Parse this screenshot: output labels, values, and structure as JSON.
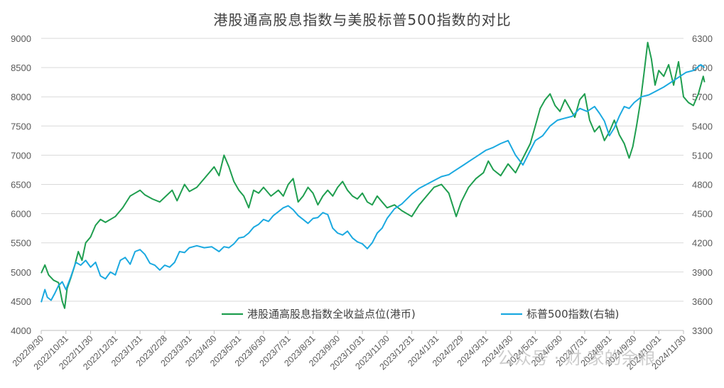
{
  "chart_data": {
    "type": "line",
    "title": "港股通高股息指数与美股标普500指数的对比",
    "xlabel": "",
    "ylabel_left": "",
    "ylabel_right": "",
    "ylim_left": [
      4000,
      9000
    ],
    "ylim_right": [
      3300,
      6300
    ],
    "left_ticks": [
      "4000",
      "4500",
      "5000",
      "5500",
      "6000",
      "6500",
      "7000",
      "7500",
      "8000",
      "8500",
      "9000"
    ],
    "right_ticks": [
      "3300",
      "3600",
      "3900",
      "4200",
      "4500",
      "4800",
      "5100",
      "5400",
      "5700",
      "6000",
      "6300"
    ],
    "x_ticks": [
      "2022/9/30",
      "2022/10/31",
      "2022/11/30",
      "2022/12/31",
      "2023/1/31",
      "2023/2/28",
      "2023/3/31",
      "2023/4/30",
      "2023/5/31",
      "2023/6/30",
      "2023/7/31",
      "2023/8/31",
      "2023/9/30",
      "2023/10/31",
      "2023/11/30",
      "2023/12/31",
      "2024/1/31",
      "2024/2/29",
      "2024/3/31",
      "2024/4/30",
      "2024/5/31",
      "2024/6/30",
      "2024/7/31",
      "2024/8/31",
      "2024/9/30",
      "2024/10/31",
      "2024/11/30"
    ],
    "grid": "horizontal",
    "legend_position": "bottom-center",
    "colors": {
      "hk": "#1f9e4f",
      "sp": "#1ba9e0"
    },
    "series": [
      {
        "name": "港股通高股息指数全收益点位(港币)",
        "axis": "left",
        "points": [
          [
            0,
            4980
          ],
          [
            0.15,
            5120
          ],
          [
            0.3,
            4950
          ],
          [
            0.5,
            4860
          ],
          [
            0.7,
            4820
          ],
          [
            0.85,
            4500
          ],
          [
            0.95,
            4380
          ],
          [
            1.05,
            4720
          ],
          [
            1.2,
            4900
          ],
          [
            1.35,
            5100
          ],
          [
            1.5,
            5350
          ],
          [
            1.65,
            5200
          ],
          [
            1.8,
            5500
          ],
          [
            2.0,
            5600
          ],
          [
            2.2,
            5800
          ],
          [
            2.4,
            5900
          ],
          [
            2.6,
            5850
          ],
          [
            3.0,
            5950
          ],
          [
            3.3,
            6100
          ],
          [
            3.6,
            6300
          ],
          [
            3.8,
            6350
          ],
          [
            4.0,
            6400
          ],
          [
            4.2,
            6320
          ],
          [
            4.5,
            6250
          ],
          [
            4.8,
            6200
          ],
          [
            5.0,
            6280
          ],
          [
            5.3,
            6400
          ],
          [
            5.5,
            6220
          ],
          [
            5.8,
            6500
          ],
          [
            6.0,
            6380
          ],
          [
            6.3,
            6450
          ],
          [
            6.5,
            6550
          ],
          [
            6.8,
            6700
          ],
          [
            7.0,
            6800
          ],
          [
            7.2,
            6650
          ],
          [
            7.4,
            7000
          ],
          [
            7.6,
            6800
          ],
          [
            7.8,
            6550
          ],
          [
            8.0,
            6400
          ],
          [
            8.2,
            6300
          ],
          [
            8.4,
            6100
          ],
          [
            8.6,
            6400
          ],
          [
            8.8,
            6350
          ],
          [
            9.0,
            6450
          ],
          [
            9.3,
            6300
          ],
          [
            9.6,
            6400
          ],
          [
            9.8,
            6300
          ],
          [
            10.0,
            6500
          ],
          [
            10.2,
            6600
          ],
          [
            10.4,
            6200
          ],
          [
            10.6,
            6300
          ],
          [
            10.8,
            6450
          ],
          [
            11.0,
            6350
          ],
          [
            11.2,
            6150
          ],
          [
            11.4,
            6300
          ],
          [
            11.6,
            6400
          ],
          [
            11.8,
            6300
          ],
          [
            12.0,
            6450
          ],
          [
            12.2,
            6550
          ],
          [
            12.4,
            6400
          ],
          [
            12.6,
            6300
          ],
          [
            12.8,
            6250
          ],
          [
            13.0,
            6350
          ],
          [
            13.2,
            6200
          ],
          [
            13.4,
            6150
          ],
          [
            13.6,
            6300
          ],
          [
            13.8,
            6200
          ],
          [
            14.0,
            6100
          ],
          [
            14.3,
            6150
          ],
          [
            14.6,
            6050
          ],
          [
            15.0,
            5950
          ],
          [
            15.3,
            6150
          ],
          [
            15.6,
            6300
          ],
          [
            15.9,
            6450
          ],
          [
            16.2,
            6500
          ],
          [
            16.5,
            6350
          ],
          [
            16.8,
            5950
          ],
          [
            17.0,
            6200
          ],
          [
            17.3,
            6450
          ],
          [
            17.6,
            6600
          ],
          [
            17.9,
            6700
          ],
          [
            18.1,
            6900
          ],
          [
            18.3,
            6750
          ],
          [
            18.6,
            6650
          ],
          [
            18.9,
            6850
          ],
          [
            19.2,
            6700
          ],
          [
            19.5,
            6950
          ],
          [
            19.8,
            7200
          ],
          [
            20.0,
            7500
          ],
          [
            20.2,
            7800
          ],
          [
            20.4,
            7950
          ],
          [
            20.6,
            8050
          ],
          [
            20.8,
            7850
          ],
          [
            21.0,
            7750
          ],
          [
            21.2,
            7950
          ],
          [
            21.4,
            7800
          ],
          [
            21.6,
            7650
          ],
          [
            21.8,
            7950
          ],
          [
            22.0,
            8050
          ],
          [
            22.2,
            7600
          ],
          [
            22.4,
            7400
          ],
          [
            22.6,
            7500
          ],
          [
            22.8,
            7250
          ],
          [
            23.0,
            7400
          ],
          [
            23.2,
            7600
          ],
          [
            23.4,
            7350
          ],
          [
            23.6,
            7200
          ],
          [
            23.8,
            6950
          ],
          [
            23.95,
            7150
          ],
          [
            24.1,
            7500
          ],
          [
            24.25,
            7900
          ],
          [
            24.4,
            8400
          ],
          [
            24.55,
            8930
          ],
          [
            24.7,
            8650
          ],
          [
            24.85,
            8200
          ],
          [
            25.0,
            8450
          ],
          [
            25.2,
            8350
          ],
          [
            25.4,
            8550
          ],
          [
            25.6,
            8200
          ],
          [
            25.8,
            8600
          ],
          [
            26.0,
            8000
          ],
          [
            26.2,
            7900
          ],
          [
            26.4,
            7850
          ],
          [
            26.6,
            8050
          ],
          [
            26.8,
            8350
          ],
          [
            26.85,
            8250
          ]
        ]
      },
      {
        "name": "标普500指数(右轴)",
        "axis": "right",
        "points": [
          [
            0,
            3590
          ],
          [
            0.15,
            3720
          ],
          [
            0.25,
            3640
          ],
          [
            0.4,
            3610
          ],
          [
            0.55,
            3680
          ],
          [
            0.7,
            3760
          ],
          [
            0.85,
            3800
          ],
          [
            1.0,
            3720
          ],
          [
            1.2,
            3850
          ],
          [
            1.4,
            4000
          ],
          [
            1.6,
            3970
          ],
          [
            1.8,
            4020
          ],
          [
            2.0,
            3950
          ],
          [
            2.2,
            4000
          ],
          [
            2.4,
            3860
          ],
          [
            2.6,
            3830
          ],
          [
            2.8,
            3900
          ],
          [
            3.0,
            3870
          ],
          [
            3.2,
            4020
          ],
          [
            3.4,
            4050
          ],
          [
            3.6,
            3980
          ],
          [
            3.8,
            4110
          ],
          [
            4.0,
            4130
          ],
          [
            4.2,
            4080
          ],
          [
            4.4,
            3990
          ],
          [
            4.6,
            3970
          ],
          [
            4.8,
            3920
          ],
          [
            5.0,
            3970
          ],
          [
            5.2,
            3950
          ],
          [
            5.4,
            4000
          ],
          [
            5.6,
            4110
          ],
          [
            5.8,
            4100
          ],
          [
            6.0,
            4150
          ],
          [
            6.3,
            4170
          ],
          [
            6.6,
            4150
          ],
          [
            6.9,
            4160
          ],
          [
            7.2,
            4110
          ],
          [
            7.4,
            4160
          ],
          [
            7.6,
            4150
          ],
          [
            7.8,
            4190
          ],
          [
            8.0,
            4250
          ],
          [
            8.2,
            4260
          ],
          [
            8.4,
            4300
          ],
          [
            8.6,
            4360
          ],
          [
            8.8,
            4390
          ],
          [
            9.0,
            4440
          ],
          [
            9.2,
            4420
          ],
          [
            9.4,
            4480
          ],
          [
            9.6,
            4520
          ],
          [
            9.8,
            4560
          ],
          [
            10.0,
            4580
          ],
          [
            10.2,
            4540
          ],
          [
            10.4,
            4480
          ],
          [
            10.6,
            4440
          ],
          [
            10.8,
            4400
          ],
          [
            11.0,
            4450
          ],
          [
            11.2,
            4460
          ],
          [
            11.4,
            4510
          ],
          [
            11.6,
            4490
          ],
          [
            11.8,
            4350
          ],
          [
            12.0,
            4300
          ],
          [
            12.2,
            4280
          ],
          [
            12.4,
            4320
          ],
          [
            12.6,
            4250
          ],
          [
            12.8,
            4210
          ],
          [
            13.0,
            4190
          ],
          [
            13.2,
            4140
          ],
          [
            13.4,
            4200
          ],
          [
            13.6,
            4300
          ],
          [
            13.8,
            4350
          ],
          [
            14.0,
            4450
          ],
          [
            14.3,
            4550
          ],
          [
            14.6,
            4600
          ],
          [
            15.0,
            4700
          ],
          [
            15.3,
            4760
          ],
          [
            15.6,
            4800
          ],
          [
            15.9,
            4840
          ],
          [
            16.2,
            4880
          ],
          [
            16.5,
            4900
          ],
          [
            16.8,
            4950
          ],
          [
            17.1,
            5000
          ],
          [
            17.4,
            5050
          ],
          [
            17.7,
            5100
          ],
          [
            18.0,
            5150
          ],
          [
            18.3,
            5180
          ],
          [
            18.6,
            5220
          ],
          [
            18.9,
            5250
          ],
          [
            19.2,
            5100
          ],
          [
            19.5,
            5000
          ],
          [
            19.8,
            5150
          ],
          [
            20.0,
            5250
          ],
          [
            20.3,
            5300
          ],
          [
            20.6,
            5400
          ],
          [
            20.9,
            5460
          ],
          [
            21.2,
            5480
          ],
          [
            21.5,
            5500
          ],
          [
            21.8,
            5580
          ],
          [
            22.1,
            5550
          ],
          [
            22.4,
            5600
          ],
          [
            22.6,
            5530
          ],
          [
            22.8,
            5450
          ],
          [
            23.0,
            5300
          ],
          [
            23.2,
            5380
          ],
          [
            23.4,
            5500
          ],
          [
            23.6,
            5600
          ],
          [
            23.8,
            5580
          ],
          [
            24.0,
            5640
          ],
          [
            24.3,
            5700
          ],
          [
            24.6,
            5720
          ],
          [
            24.9,
            5760
          ],
          [
            25.2,
            5800
          ],
          [
            25.5,
            5850
          ],
          [
            25.8,
            5900
          ],
          [
            26.1,
            5950
          ],
          [
            26.4,
            5970
          ],
          [
            26.7,
            6030
          ],
          [
            26.85,
            6000
          ]
        ]
      }
    ]
  },
  "watermark": "公众号 · 财·家的余粮"
}
